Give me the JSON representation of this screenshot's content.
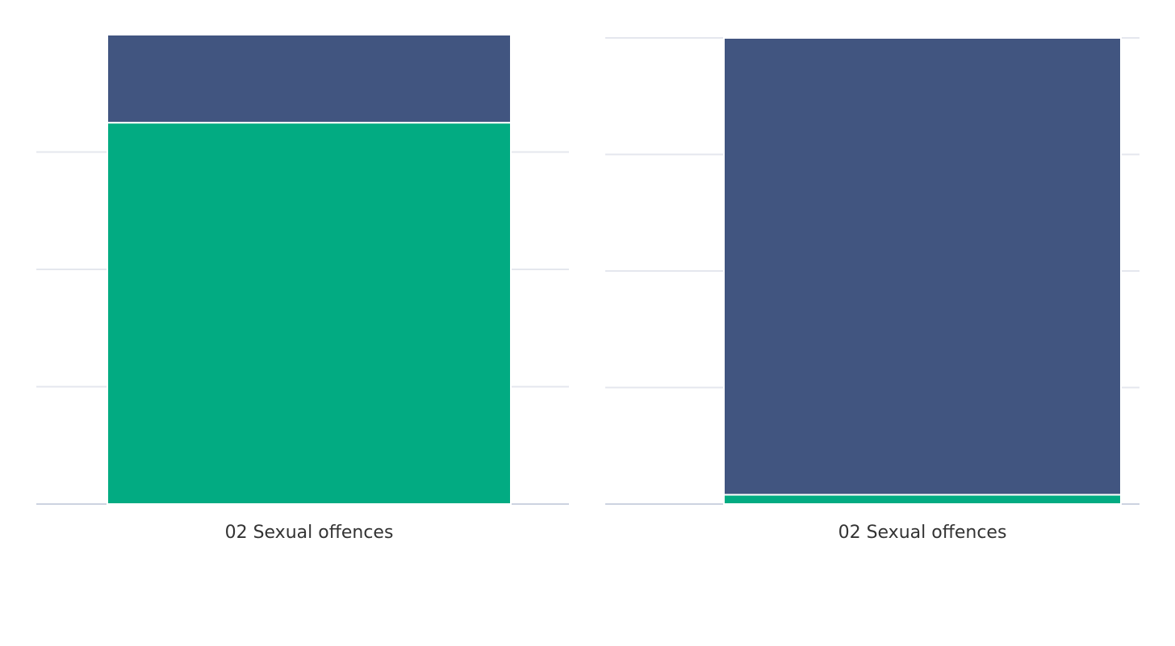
{
  "chart_data": [
    {
      "type": "bar",
      "stacked": true,
      "categories": [
        "02 Sexual offences"
      ],
      "series": [
        {
          "color": "#02ab82",
          "values": [
            3.25
          ]
        },
        {
          "color": "#415580",
          "values": [
            0.75
          ]
        }
      ],
      "ylim": [
        0,
        4
      ],
      "yticks": [
        0,
        1,
        2,
        3
      ],
      "grid": true
    },
    {
      "type": "bar",
      "stacked": true,
      "categories": [
        "02 Sexual offences"
      ],
      "series": [
        {
          "color": "#02ab82",
          "values": [
            0.08
          ]
        },
        {
          "color": "#415580",
          "values": [
            3.92
          ]
        }
      ],
      "ylim": [
        0,
        4
      ],
      "yticks": [
        0,
        1,
        2,
        3,
        4
      ],
      "grid": true
    }
  ]
}
